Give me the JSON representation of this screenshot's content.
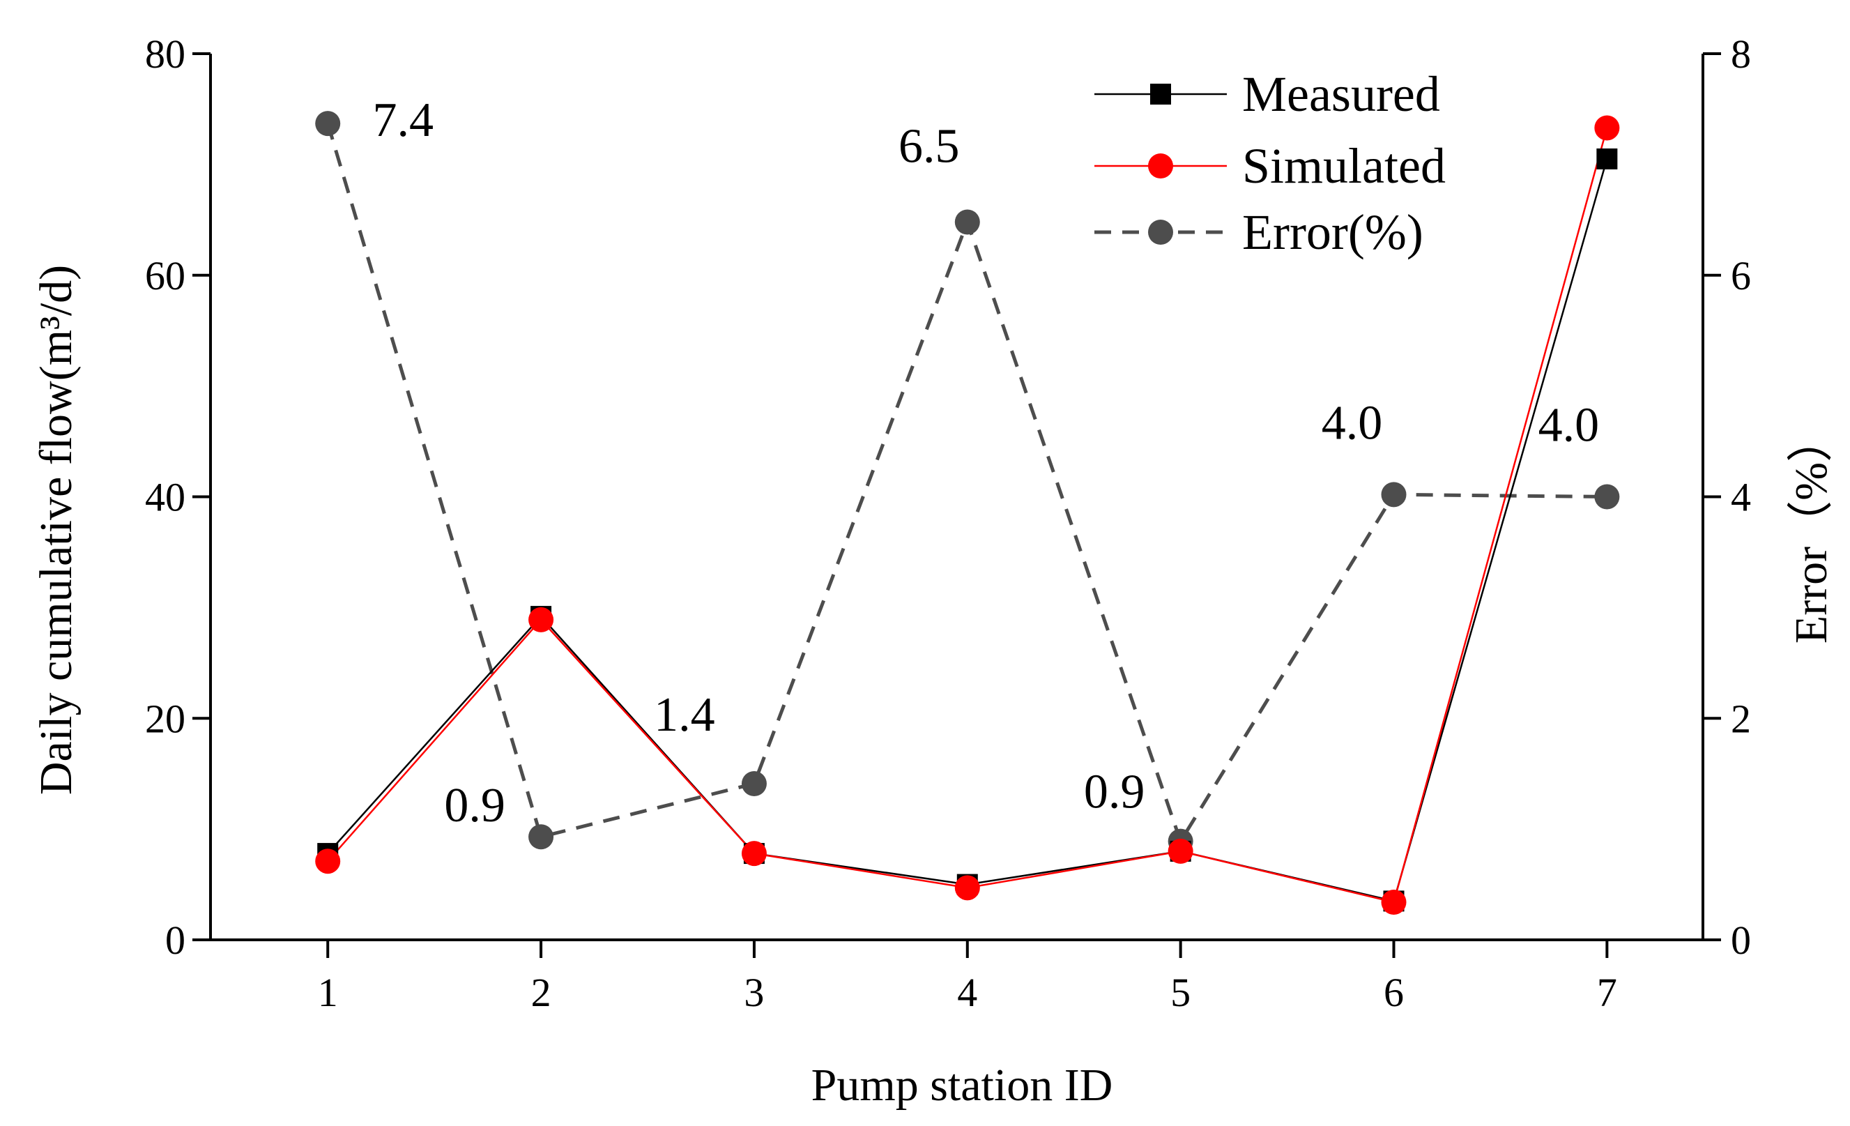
{
  "chart_data": {
    "type": "line",
    "xlabel": "Pump station ID",
    "ylabel": "Daily cumulative flow(m³/d)",
    "y2label": "Error（%）",
    "categories": [
      1,
      2,
      3,
      4,
      5,
      6,
      7
    ],
    "ylim": [
      0,
      80
    ],
    "y2lim": [
      0,
      8
    ],
    "yticks": [
      "0",
      "20",
      "40",
      "60",
      "80"
    ],
    "y2ticks": [
      "0",
      "2",
      "4",
      "6",
      "8"
    ],
    "xticks": [
      "1",
      "2",
      "3",
      "4",
      "5",
      "6",
      "7"
    ],
    "grid": false,
    "legend_position": "top-right",
    "series": [
      {
        "name": "Measured",
        "axis": "left",
        "marker": "square",
        "line": "solid",
        "color": "#000000",
        "values": [
          7.8,
          29.2,
          7.8,
          5.0,
          8.0,
          3.5,
          70.5
        ]
      },
      {
        "name": "Simulated",
        "axis": "left",
        "marker": "circle",
        "line": "solid",
        "color": "#ff0000",
        "values": [
          7.1,
          28.9,
          7.8,
          4.7,
          8.0,
          3.4,
          73.3
        ]
      },
      {
        "name": "Error(%)",
        "axis": "right",
        "marker": "circle",
        "line": "dashed",
        "color": "#4d4d4d",
        "values": [
          7.37,
          0.93,
          1.41,
          6.48,
          0.89,
          4.02,
          4.0
        ]
      }
    ],
    "data_labels": [
      "7.4",
      "0.9",
      "1.4",
      "6.5",
      "0.9",
      "4.0",
      "4.0"
    ]
  }
}
